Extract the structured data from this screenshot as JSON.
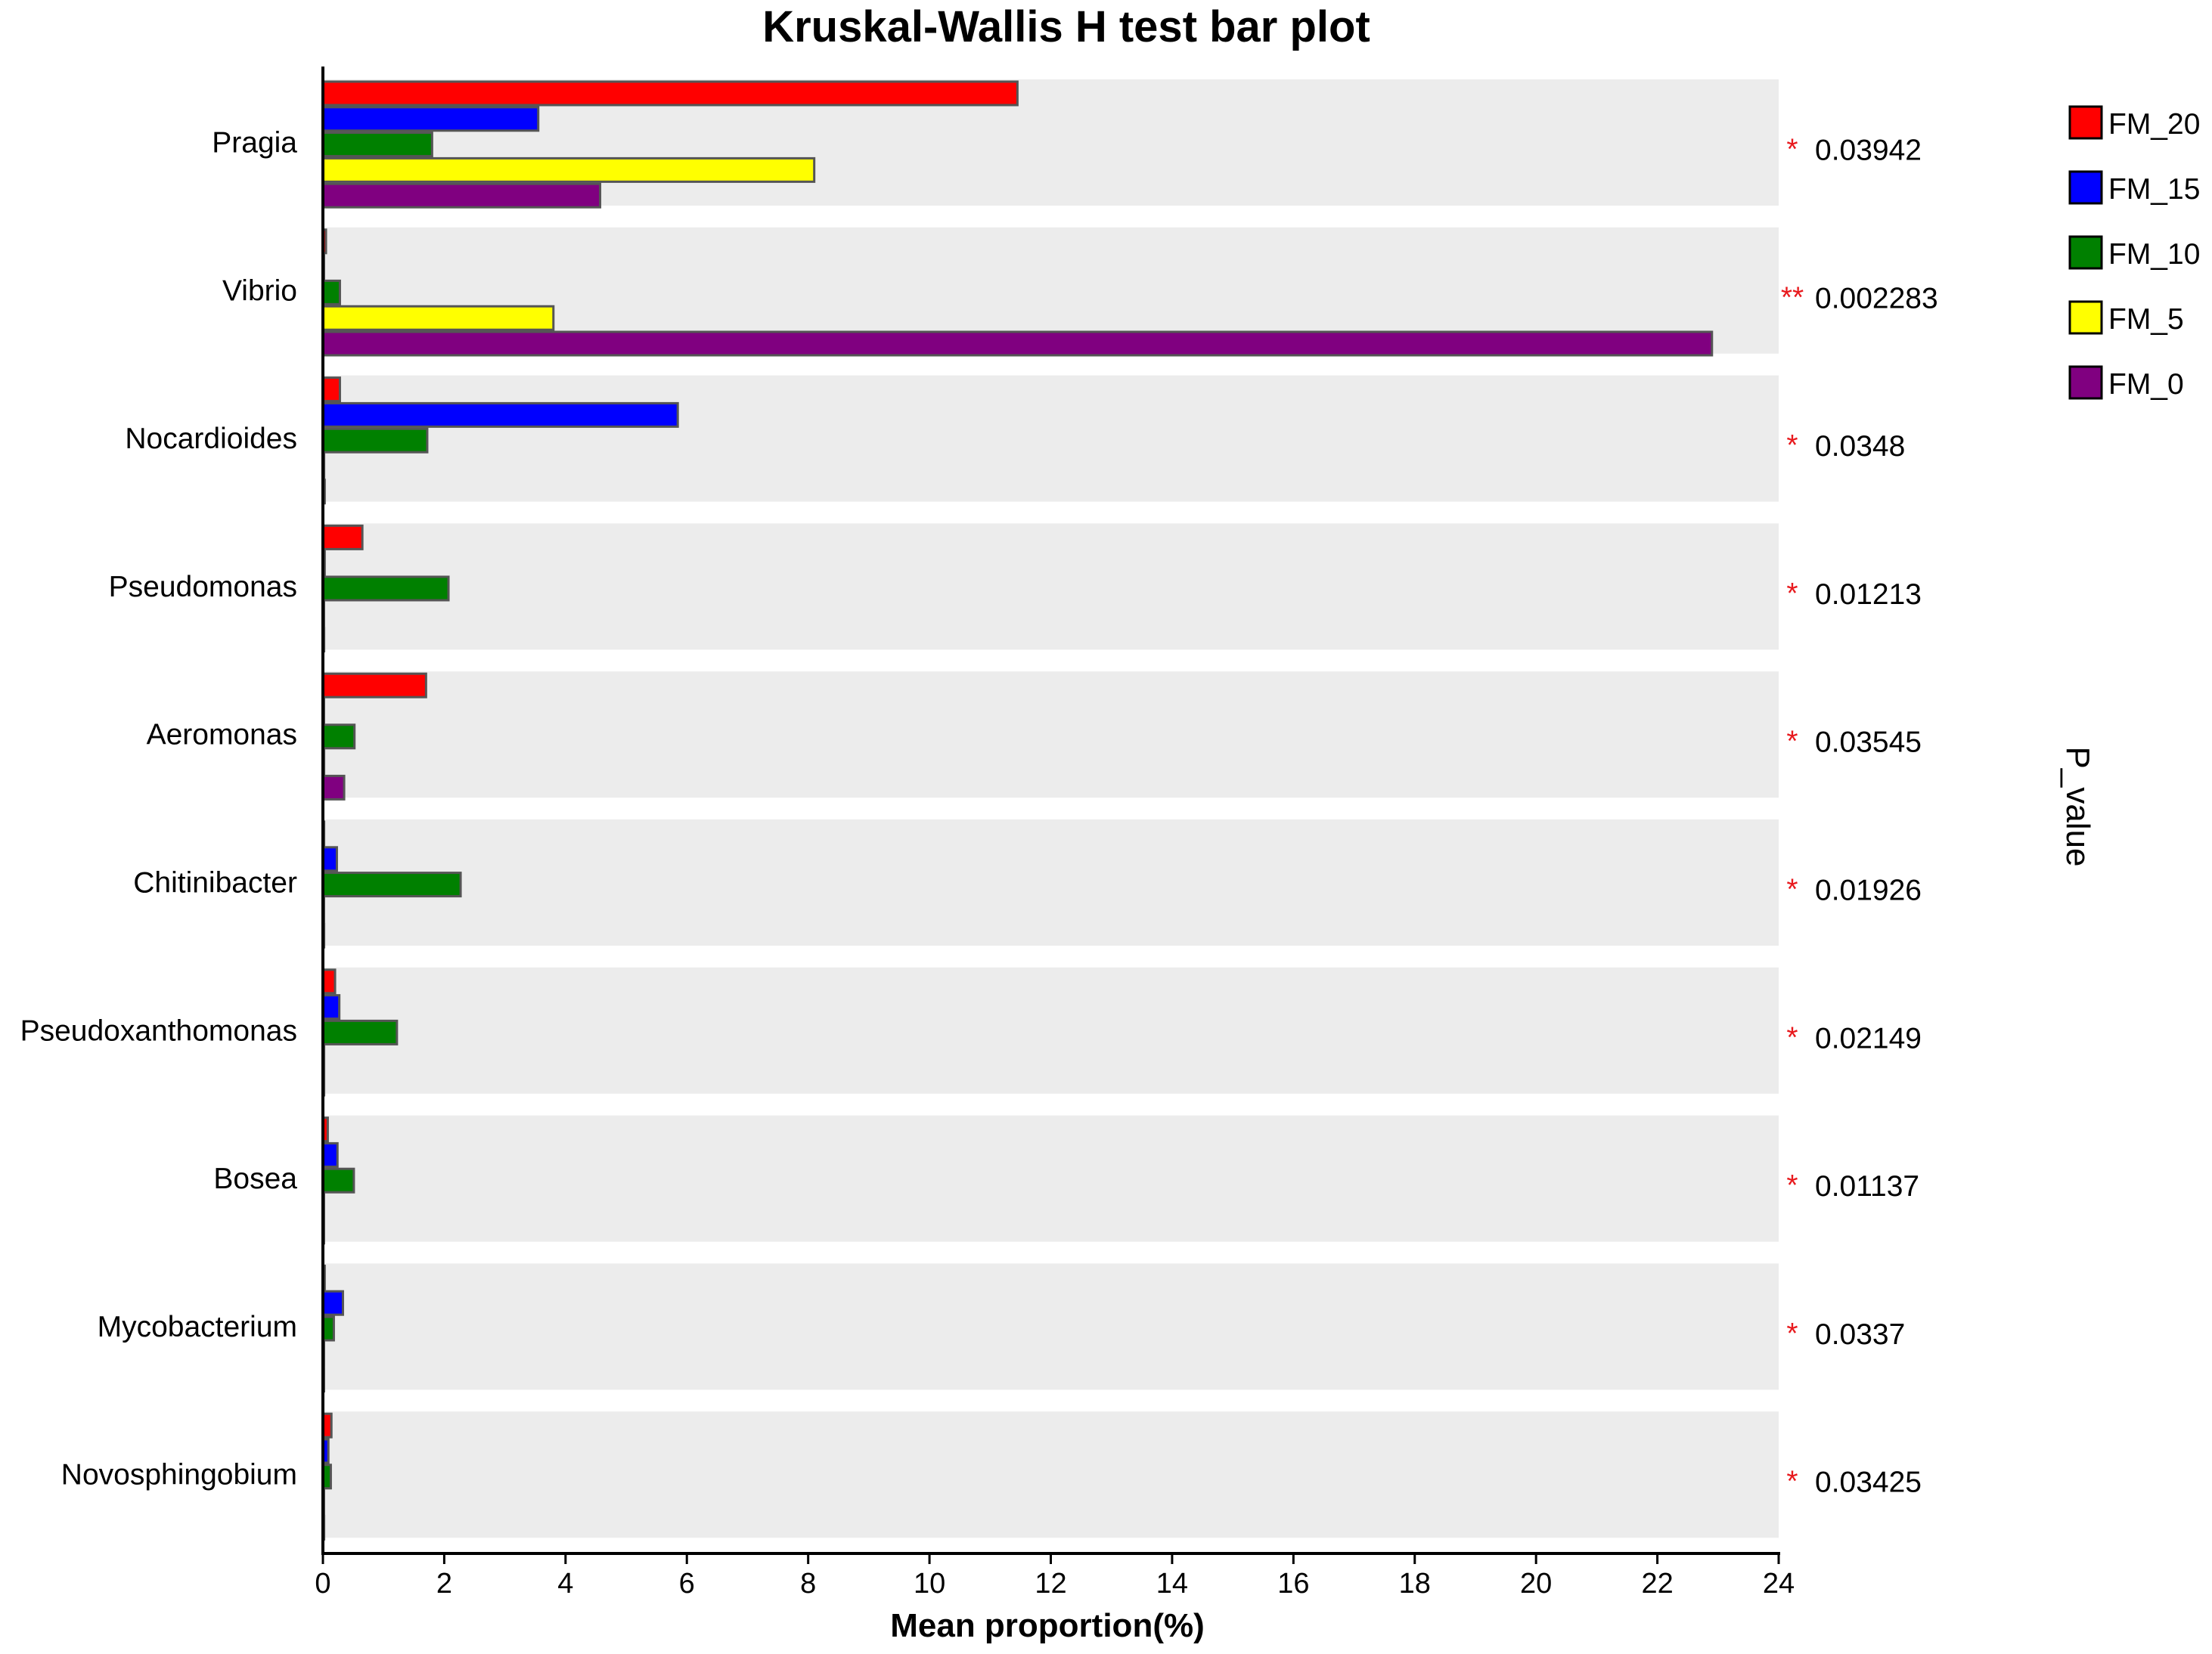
{
  "chart_data": {
    "type": "bar",
    "orientation": "horizontal",
    "title": "Kruskal-Wallis H test bar plot",
    "xlabel": "Mean proportion(%)",
    "side_label": "P_value",
    "xlim": [
      0,
      24
    ],
    "xticks": [
      0,
      2,
      4,
      6,
      8,
      10,
      12,
      14,
      16,
      18,
      20,
      22,
      24
    ],
    "legend_position": "top-right",
    "categories": [
      "Pragia",
      "Vibrio",
      "Nocardioides",
      "Pseudomonas",
      "Aeromonas",
      "Chitinibacter",
      "Pseudoxanthomonas",
      "Bosea",
      "Mycobacterium",
      "Novosphingobium"
    ],
    "series": [
      {
        "name": "FM_20",
        "color": "#ff0000",
        "values": [
          11.45,
          0.05,
          0.28,
          0.65,
          1.7,
          0.02,
          0.2,
          0.08,
          0.03,
          0.14
        ]
      },
      {
        "name": "FM_15",
        "color": "#0000ff",
        "values": [
          3.55,
          0.01,
          5.85,
          0.03,
          0.01,
          0.23,
          0.27,
          0.24,
          0.33,
          0.09
        ]
      },
      {
        "name": "FM_10",
        "color": "#008000",
        "values": [
          1.8,
          0.28,
          1.72,
          2.07,
          0.52,
          2.27,
          1.22,
          0.51,
          0.18,
          0.13
        ]
      },
      {
        "name": "FM_5",
        "color": "#ffff00",
        "values": [
          8.1,
          3.8,
          0.02,
          0.01,
          0.02,
          0.01,
          0.02,
          0.01,
          0.01,
          0.01
        ]
      },
      {
        "name": "FM_0",
        "color": "#800080",
        "values": [
          4.57,
          22.9,
          0.03,
          0.02,
          0.35,
          0.02,
          0.02,
          0.01,
          0.01,
          0.02
        ]
      }
    ],
    "p_values": [
      "0.03942",
      "0.002283",
      "0.0348",
      "0.01213",
      "0.03545",
      "0.01926",
      "0.02149",
      "0.01137",
      "0.0337",
      "0.03425"
    ],
    "significance": [
      "*",
      "**",
      "*",
      "*",
      "*",
      "*",
      "*",
      "*",
      "*",
      "*"
    ],
    "colors": {
      "band": "#ececec",
      "bar_stroke": "#555555",
      "star": "#e8191d"
    }
  }
}
